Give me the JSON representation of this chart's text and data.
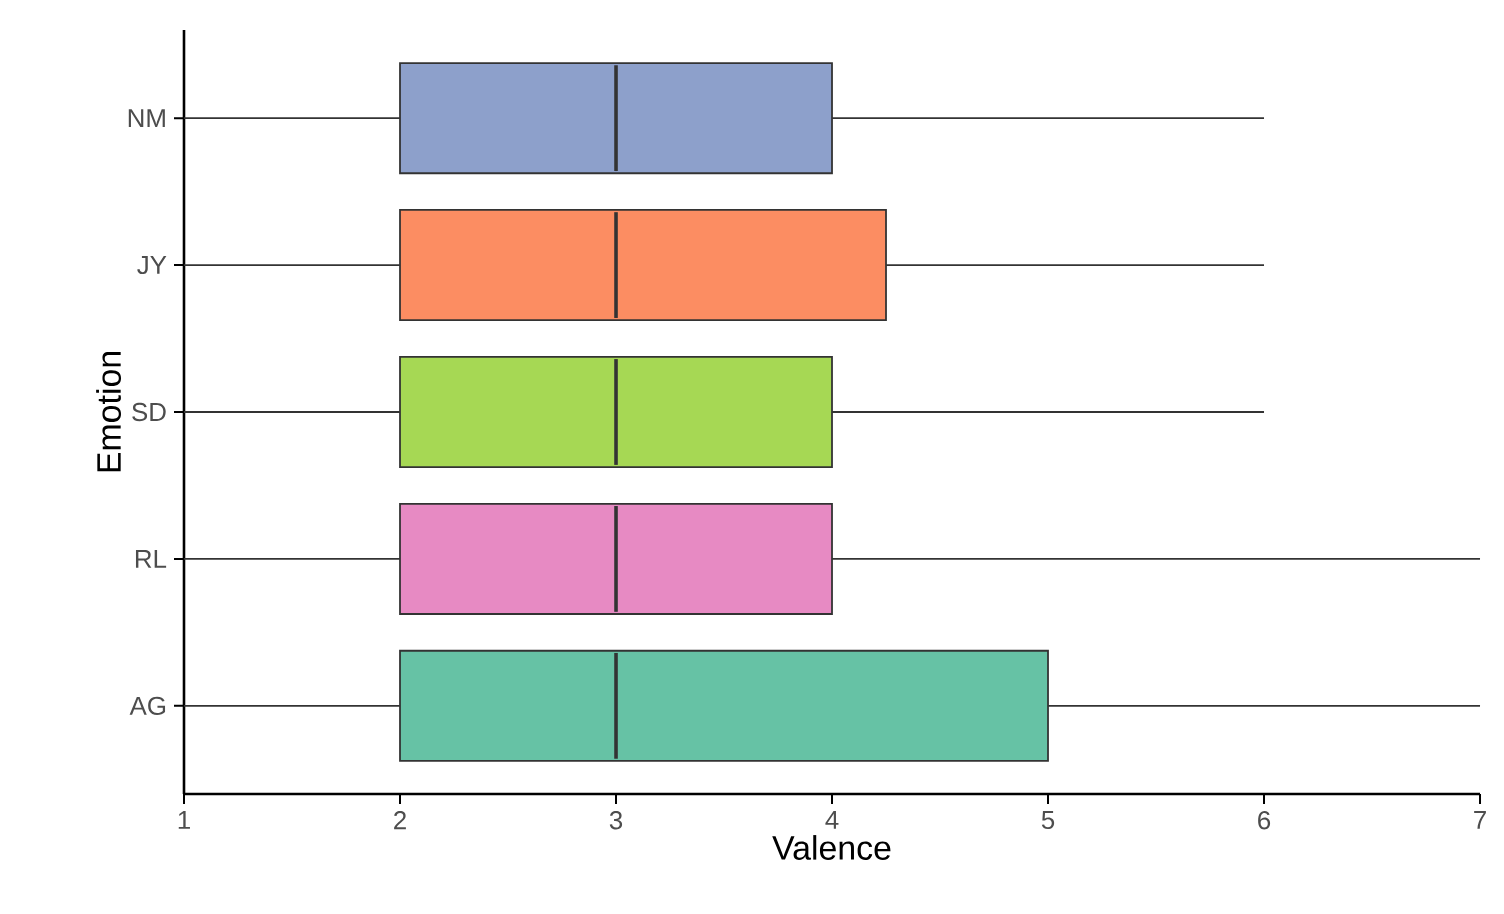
{
  "chart_data": {
    "type": "box",
    "orientation": "horizontal",
    "xlabel": "Valence",
    "ylabel": "Emotion",
    "categories": [
      "NM",
      "JY",
      "SD",
      "RL",
      "AG"
    ],
    "colors": [
      "#8da0cb",
      "#fc8d62",
      "#a6d854",
      "#e78ac3",
      "#66c2a5"
    ],
    "boxes": [
      {
        "low": 1,
        "q1": 2,
        "median": 3,
        "q3": 4,
        "high": 6
      },
      {
        "low": 1,
        "q1": 2,
        "median": 3,
        "q3": 4.25,
        "high": 6
      },
      {
        "low": 1,
        "q1": 2,
        "median": 3,
        "q3": 4,
        "high": 6
      },
      {
        "low": 1,
        "q1": 2,
        "median": 3,
        "q3": 4,
        "high": 7
      },
      {
        "low": 1,
        "q1": 2,
        "median": 3,
        "q3": 5,
        "high": 7
      }
    ],
    "xlim": [
      1,
      7
    ],
    "xticks": [
      1,
      2,
      3,
      4,
      5,
      6,
      7
    ]
  }
}
